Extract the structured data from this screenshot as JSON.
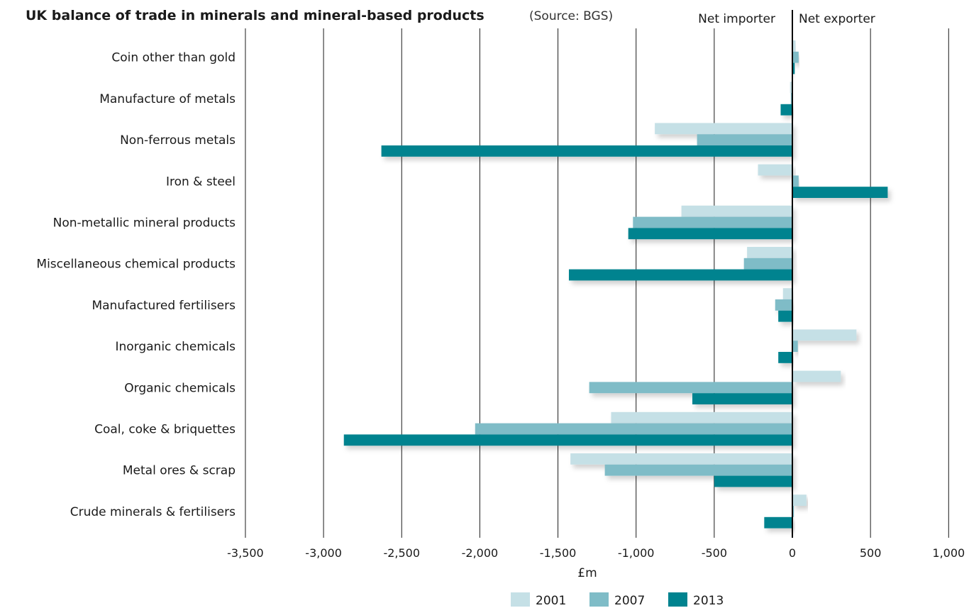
{
  "chart_data": {
    "type": "bar",
    "orientation": "horizontal",
    "title": "UK balance of trade in minerals and mineral-based products",
    "source": "(Source: BGS)",
    "regions": {
      "left": "Net importer",
      "right": "Net exporter"
    },
    "xlabel": "£m",
    "xlim": [
      -3500,
      1000
    ],
    "xticks": [
      -3500,
      -3000,
      -2500,
      -2000,
      -1500,
      -1000,
      -500,
      0,
      500,
      1000
    ],
    "xtick_labels": [
      "-3,500",
      "-3,000",
      "-2,500",
      "-2,000",
      "-1,500",
      "-1,000",
      "-500",
      "0",
      "500",
      "1,000"
    ],
    "grid": true,
    "legend_position": "bottom",
    "categories": [
      "Coin other than gold",
      "Manufacture of metals",
      "Non-ferrous metals",
      "Iron & steel",
      "Non-metallic mineral products",
      "Miscellaneous chemical products",
      "Manufactured fertilisers",
      "Inorganic chemicals",
      "Organic chemicals",
      "Coal, coke & briquettes",
      "Metal ores & scrap",
      "Crude minerals & fertilisers"
    ],
    "series": [
      {
        "name": "2001",
        "color": "#c5e0e6",
        "values": [
          20,
          -15,
          -880,
          -220,
          -710,
          -290,
          -60,
          410,
          310,
          -1160,
          -1420,
          90
        ]
      },
      {
        "name": "2007",
        "color": "#7fbcc7",
        "values": [
          40,
          -10,
          -610,
          40,
          -1020,
          -310,
          -110,
          35,
          -1300,
          -2030,
          -1200,
          10
        ]
      },
      {
        "name": "2013",
        "color": "#00838f",
        "values": [
          15,
          -75,
          -2630,
          610,
          -1050,
          -1430,
          -90,
          -90,
          -640,
          -2870,
          -500,
          -180
        ]
      }
    ]
  }
}
